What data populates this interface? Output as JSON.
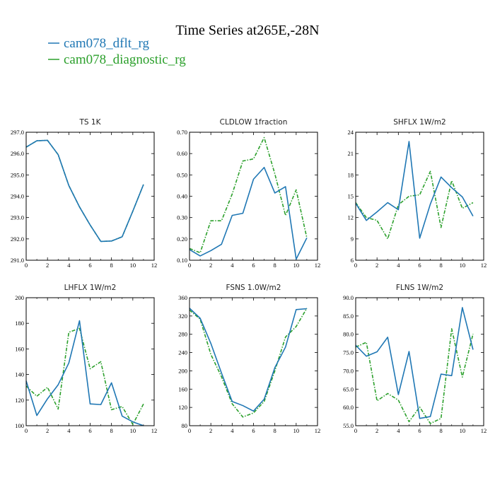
{
  "figure": {
    "title": "Time Series at265E,-28N",
    "series": [
      {
        "name": "cam078_dflt_rg",
        "color": "#1f77b4",
        "dash": ""
      },
      {
        "name": "cam078_diagnostic_rg",
        "color": "#2ca02c",
        "dash": "5,2,1.5,2"
      }
    ]
  },
  "chart_data": [
    {
      "type": "line",
      "title": "TS   1K",
      "x": [
        0,
        1,
        2,
        3,
        4,
        5,
        6,
        7,
        8,
        9,
        10,
        11
      ],
      "xlim": [
        0,
        12
      ],
      "xticks": [
        0,
        2,
        4,
        6,
        8,
        10,
        12
      ],
      "ylim": [
        291,
        297
      ],
      "yticks": [
        "291.0",
        "292.0",
        "293.0",
        "294.0",
        "295.0",
        "296.0",
        "297.0"
      ],
      "series": [
        {
          "name": "cam078_dflt_rg",
          "values": [
            296.3,
            296.6,
            296.62,
            295.95,
            294.5,
            293.5,
            292.65,
            291.88,
            291.9,
            292.1,
            293.3,
            294.55
          ]
        },
        {
          "name": "cam078_diagnostic_rg",
          "values": [
            296.3,
            296.6,
            296.62,
            295.95,
            294.5,
            293.5,
            292.65,
            291.88,
            291.9,
            292.1,
            293.3,
            294.55
          ]
        }
      ]
    },
    {
      "type": "line",
      "title": "CLDLOW   1fraction",
      "x": [
        0,
        1,
        2,
        3,
        4,
        5,
        6,
        7,
        8,
        9,
        10,
        11
      ],
      "xlim": [
        0,
        12
      ],
      "xticks": [
        0,
        2,
        4,
        6,
        8,
        10,
        12
      ],
      "ylim": [
        0.1,
        0.7
      ],
      "yticks": [
        "0.10",
        "0.20",
        "0.30",
        "0.40",
        "0.50",
        "0.60",
        "0.70"
      ],
      "series": [
        {
          "name": "cam078_dflt_rg",
          "values": [
            0.15,
            0.12,
            0.145,
            0.175,
            0.31,
            0.32,
            0.48,
            0.535,
            0.415,
            0.445,
            0.105,
            0.205
          ]
        },
        {
          "name": "cam078_diagnostic_rg",
          "values": [
            0.155,
            0.135,
            0.285,
            0.285,
            0.41,
            0.565,
            0.575,
            0.675,
            0.505,
            0.31,
            0.43,
            0.205
          ]
        }
      ]
    },
    {
      "type": "line",
      "title": "SHFLX   1W/m2",
      "x": [
        0,
        1,
        2,
        3,
        4,
        5,
        6,
        7,
        8,
        9,
        10,
        11
      ],
      "xlim": [
        0,
        12
      ],
      "xticks": [
        0,
        2,
        4,
        6,
        8,
        10,
        12
      ],
      "ylim": [
        6,
        24
      ],
      "yticks": [
        "6",
        "9",
        "12",
        "15",
        "18",
        "21",
        "24"
      ],
      "series": [
        {
          "name": "cam078_dflt_rg",
          "values": [
            14.0,
            11.6,
            12.8,
            14.1,
            13.1,
            22.7,
            9.1,
            13.9,
            17.7,
            16.2,
            14.9,
            12.2
          ]
        },
        {
          "name": "cam078_diagnostic_rg",
          "values": [
            14.1,
            12.0,
            11.6,
            9.0,
            13.8,
            15.0,
            15.2,
            18.5,
            10.6,
            17.2,
            13.3,
            14.1
          ]
        }
      ]
    },
    {
      "type": "line",
      "title": "LHFLX   1W/m2",
      "x": [
        0,
        1,
        2,
        3,
        4,
        5,
        6,
        7,
        8,
        9,
        10,
        11
      ],
      "xlim": [
        0,
        12
      ],
      "xticks": [
        0,
        2,
        4,
        6,
        8,
        10,
        12
      ],
      "ylim": [
        100,
        200
      ],
      "yticks": [
        "100",
        "120",
        "140",
        "160",
        "180",
        "200"
      ],
      "series": [
        {
          "name": "cam078_dflt_rg",
          "values": [
            135,
            108,
            121,
            132,
            149,
            182,
            117,
            116.5,
            133.5,
            107.5,
            103,
            100
          ]
        },
        {
          "name": "cam078_diagnostic_rg",
          "values": [
            131,
            123,
            130,
            113,
            173,
            176,
            144.5,
            150,
            112.5,
            115,
            101,
            117
          ]
        }
      ]
    },
    {
      "type": "line",
      "title": "FSNS   1.0W/m2",
      "x": [
        0,
        1,
        2,
        3,
        4,
        5,
        6,
        7,
        8,
        9,
        10,
        11
      ],
      "xlim": [
        0,
        12
      ],
      "xticks": [
        0,
        2,
        4,
        6,
        8,
        10,
        12
      ],
      "ylim": [
        80,
        360
      ],
      "yticks": [
        "80",
        "120",
        "160",
        "200",
        "240",
        "280",
        "320",
        "360"
      ],
      "series": [
        {
          "name": "cam078_dflt_rg",
          "values": [
            337,
            315,
            260,
            195,
            133,
            124,
            112,
            138,
            207,
            252,
            334,
            336
          ]
        },
        {
          "name": "cam078_diagnostic_rg",
          "values": [
            333,
            313,
            236,
            187,
            128,
            99,
            108,
            133,
            200,
            274,
            297,
            337
          ]
        }
      ]
    },
    {
      "type": "line",
      "title": "FLNS   1W/m2",
      "x": [
        0,
        1,
        2,
        3,
        4,
        5,
        6,
        7,
        8,
        9,
        10,
        11
      ],
      "xlim": [
        0,
        12
      ],
      "xticks": [
        0,
        2,
        4,
        6,
        8,
        10,
        12
      ],
      "ylim": [
        55,
        90
      ],
      "yticks": [
        "55.0",
        "60.0",
        "65.0",
        "70.0",
        "75.0",
        "80.0",
        "85.0",
        "90.0"
      ],
      "series": [
        {
          "name": "cam078_dflt_rg",
          "values": [
            77.0,
            74.0,
            75.2,
            79.2,
            63.5,
            75.3,
            57.0,
            57.5,
            69.1,
            68.7,
            87.3,
            75.8
          ]
        },
        {
          "name": "cam078_diagnostic_rg",
          "values": [
            76.5,
            77.8,
            61.8,
            63.8,
            62.0,
            56.1,
            60.1,
            55.6,
            57.0,
            81.5,
            68.3,
            80.1
          ]
        }
      ]
    }
  ]
}
